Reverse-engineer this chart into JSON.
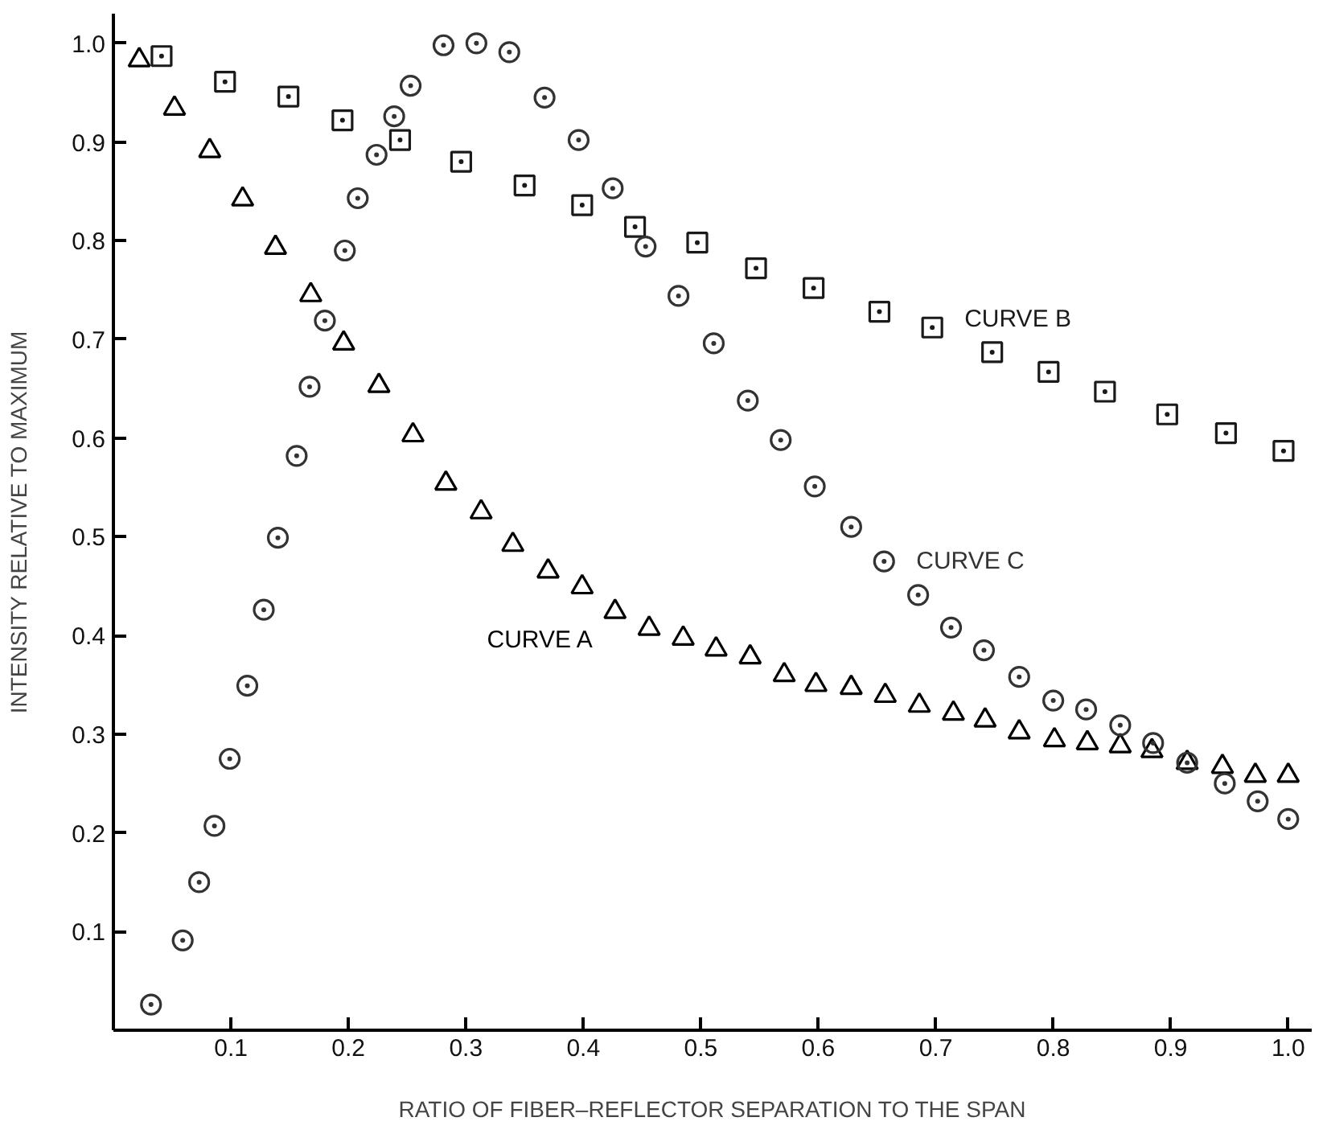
{
  "chart_data": {
    "type": "scatter",
    "xlabel": "RATIO OF FIBER–REFLECTOR SEPARATION TO THE SPAN",
    "ylabel": "INTENSITY RELATIVE TO MAXIMUM",
    "xlim": [
      0,
      1.02
    ],
    "ylim": [
      0,
      1.03
    ],
    "xticks": [
      0.1,
      0.2,
      0.3,
      0.4,
      0.5,
      0.6,
      0.7,
      0.8,
      0.9,
      {
        "value": 1.0,
        "label": "1.0"
      }
    ],
    "yticks": [
      0.1,
      0.2,
      0.3,
      0.4,
      0.5,
      0.6,
      0.7,
      0.8,
      0.9,
      {
        "value": 1.0,
        "label": "1.0"
      }
    ],
    "grid": false,
    "legend": false,
    "series": [
      {
        "name": "CURVE A",
        "color": "#000000",
        "marker": "triangle",
        "x": [
          0.022,
          0.052,
          0.082,
          0.11,
          0.138,
          0.168,
          0.196,
          0.226,
          0.255,
          0.283,
          0.313,
          0.34,
          0.37,
          0.399,
          0.427,
          0.456,
          0.485,
          0.513,
          0.542,
          0.571,
          0.598,
          0.628,
          0.657,
          0.686,
          0.715,
          0.742,
          0.771,
          0.801,
          0.829,
          0.857,
          0.884,
          0.914,
          0.944,
          0.972,
          1.0
        ],
        "values": [
          0.983,
          0.934,
          0.891,
          0.842,
          0.793,
          0.745,
          0.696,
          0.653,
          0.603,
          0.554,
          0.525,
          0.492,
          0.465,
          0.449,
          0.424,
          0.407,
          0.397,
          0.386,
          0.378,
          0.36,
          0.35,
          0.347,
          0.339,
          0.329,
          0.321,
          0.314,
          0.302,
          0.294,
          0.291,
          0.288,
          0.283,
          0.271,
          0.267,
          0.258,
          0.258
        ]
      },
      {
        "name": "CURVE B",
        "color": "#1a1a1a",
        "marker": "square",
        "x": [
          0.041,
          0.095,
          0.149,
          0.195,
          0.244,
          0.296,
          0.35,
          0.399,
          0.444,
          0.497,
          0.547,
          0.596,
          0.652,
          0.697,
          0.748,
          0.796,
          0.844,
          0.897,
          0.947,
          0.996
        ],
        "values": [
          0.987,
          0.961,
          0.946,
          0.922,
          0.902,
          0.88,
          0.856,
          0.836,
          0.814,
          0.798,
          0.772,
          0.752,
          0.728,
          0.712,
          0.687,
          0.667,
          0.647,
          0.624,
          0.605,
          0.587
        ]
      },
      {
        "name": "CURVE C",
        "color": "#333333",
        "marker": "circle",
        "x": [
          0.032,
          0.059,
          0.073,
          0.086,
          0.099,
          0.114,
          0.128,
          0.14,
          0.156,
          0.167,
          0.18,
          0.197,
          0.208,
          0.224,
          0.239,
          0.253,
          0.281,
          0.309,
          0.337,
          0.367,
          0.396,
          0.425,
          0.453,
          0.481,
          0.511,
          0.54,
          0.568,
          0.597,
          0.628,
          0.656,
          0.685,
          0.713,
          0.741,
          0.771,
          0.8,
          0.828,
          0.857,
          0.885,
          0.914,
          0.946,
          0.974,
          1.0
        ],
        "values": [
          0.026,
          0.091,
          0.15,
          0.207,
          0.275,
          0.349,
          0.426,
          0.499,
          0.582,
          0.652,
          0.719,
          0.79,
          0.843,
          0.887,
          0.926,
          0.957,
          0.998,
          1.0,
          0.991,
          0.945,
          0.902,
          0.853,
          0.794,
          0.744,
          0.696,
          0.638,
          0.598,
          0.551,
          0.51,
          0.475,
          0.441,
          0.408,
          0.385,
          0.358,
          0.334,
          0.325,
          0.309,
          0.291,
          0.271,
          0.25,
          0.232,
          0.214
        ]
      }
    ]
  }
}
